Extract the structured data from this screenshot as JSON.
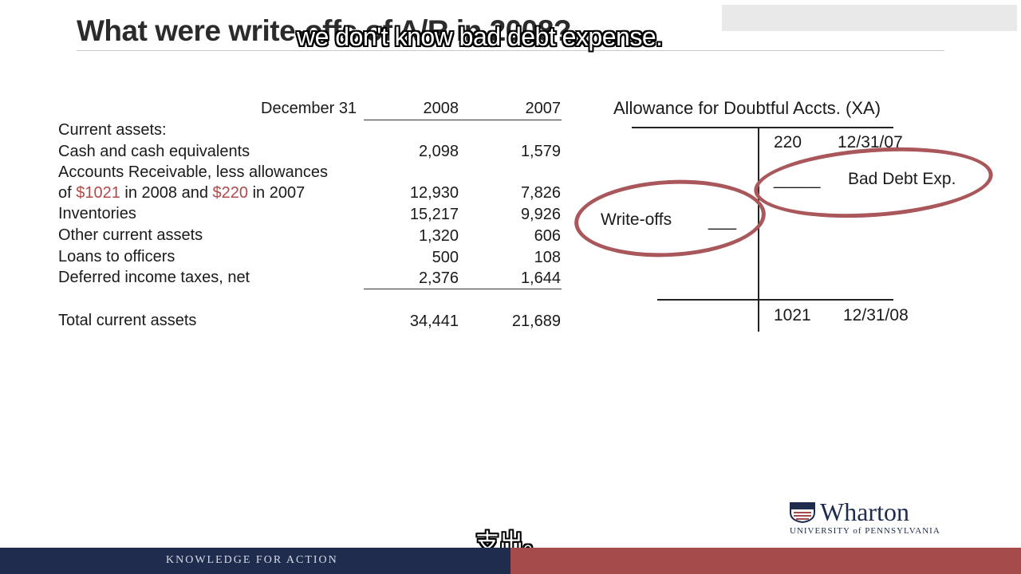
{
  "slide": {
    "title": "What were write-offs of A/R in 2008?",
    "subtitle_top": "we don't know bad debt expense.",
    "subtitle_bottom": "支出。"
  },
  "balance_sheet": {
    "header": {
      "label": "December 31",
      "y1": "2008",
      "y2": "2007"
    },
    "section": "Current assets:",
    "rows": [
      {
        "label": "Cash and cash equivalents",
        "v2008": "2,098",
        "v2007": "1,579"
      },
      {
        "label": "Accounts Receivable, less allowances",
        "v2008": "",
        "v2007": ""
      },
      {
        "label_pre": "of ",
        "amt1": "$1021",
        "label_mid": " in 2008 and ",
        "amt2": "$220",
        "label_post": " in 2007",
        "v2008": "12,930",
        "v2007": "7,826"
      },
      {
        "label": "Inventories",
        "v2008": "15,217",
        "v2007": "9,926"
      },
      {
        "label": "Other current assets",
        "v2008": "1,320",
        "v2007": "606"
      },
      {
        "label": "Loans to officers",
        "v2008": "500",
        "v2007": "108"
      },
      {
        "label": "Deferred income taxes, net",
        "v2008": "2,376",
        "v2007": "1,644"
      }
    ],
    "total": {
      "label": "Total current assets",
      "v2008": "34,441",
      "v2007": "21,689"
    }
  },
  "t_account": {
    "title": "Allowance for Doubtful Accts. (XA)",
    "opening_amount": "220",
    "opening_date": "12/31/07",
    "bad_debt_blank": "_____",
    "bad_debt_label": "Bad Debt Exp.",
    "writeoffs_label": "Write-offs",
    "writeoffs_blank": "___",
    "closing_amount": "1021",
    "closing_date": "12/31/08"
  },
  "footer": {
    "tagline": "KNOWLEDGE FOR ACTION",
    "logo_word": "Wharton",
    "logo_sub": "UNIVERSITY of PENNSYLVANIA"
  },
  "colors": {
    "accent_red": "#a9575b",
    "footer_navy": "#1f2c4d",
    "footer_red": "#a64b4b"
  }
}
